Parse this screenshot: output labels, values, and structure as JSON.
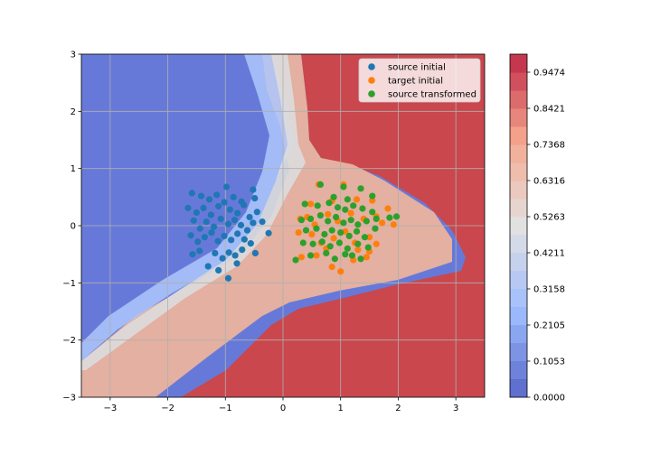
{
  "chart_data": {
    "type": "scatter",
    "title": "",
    "xlabel": "",
    "ylabel": "",
    "xlim": [
      -3.5,
      3.5
    ],
    "ylim": [
      -3,
      3
    ],
    "grid": true,
    "legend_position": "top-right",
    "x_ticks": [
      -3,
      -2,
      -1,
      0,
      1,
      2,
      3
    ],
    "x_tick_labels": [
      "−3",
      "−2",
      "−1",
      "0",
      "1",
      "2",
      "3"
    ],
    "y_ticks": [
      -3,
      -2,
      -1,
      0,
      1,
      2,
      3
    ],
    "y_tick_labels": [
      "−3",
      "−2",
      "−1",
      "0",
      "1",
      "2",
      "3"
    ],
    "background": {
      "type": "filled-contour",
      "colormap": "coolwarm",
      "low_color": "#6779d8",
      "mid_color": "#dddcdc",
      "high_color": "#c9474d"
    },
    "colorbar": {
      "min": 0,
      "max": 1,
      "ticks": [
        0,
        0.1053,
        0.2105,
        0.3158,
        0.4211,
        0.5263,
        0.6316,
        0.7368,
        0.8421,
        0.9474
      ],
      "tick_labels": [
        "0.0000",
        "0.1053",
        "0.2105",
        "0.3158",
        "0.4211",
        "0.5263",
        "0.6316",
        "0.7368",
        "0.8421",
        "0.9474"
      ]
    },
    "series": [
      {
        "name": "source initial",
        "color": "#1f77b4",
        "points": [
          [
            -1.58,
            0.57
          ],
          [
            -1.42,
            0.52
          ],
          [
            -1.28,
            0.46
          ],
          [
            -1.15,
            0.54
          ],
          [
            -0.98,
            0.68
          ],
          [
            -0.86,
            0.5
          ],
          [
            -0.72,
            0.42
          ],
          [
            -0.52,
            0.63
          ],
          [
            -0.49,
            0.48
          ],
          [
            -1.65,
            0.31
          ],
          [
            -1.5,
            0.23
          ],
          [
            -1.38,
            0.31
          ],
          [
            -1.25,
            0.19
          ],
          [
            -1.12,
            0.34
          ],
          [
            -1.02,
            0.41
          ],
          [
            -0.92,
            0.28
          ],
          [
            -0.79,
            0.22
          ],
          [
            -0.68,
            0.36
          ],
          [
            -0.58,
            0.15
          ],
          [
            -0.45,
            0.24
          ],
          [
            -1.55,
            0.09
          ],
          [
            -1.44,
            -0.05
          ],
          [
            -1.33,
            0.07
          ],
          [
            -1.2,
            -0.02
          ],
          [
            -1.08,
            0.12
          ],
          [
            -0.95,
            0.03
          ],
          [
            -0.84,
            0.1
          ],
          [
            -0.73,
            0.01
          ],
          [
            -0.62,
            -0.08
          ],
          [
            -0.52,
            0.05
          ],
          [
            -0.36,
            0.07
          ],
          [
            -1.6,
            -0.17
          ],
          [
            -1.48,
            -0.28
          ],
          [
            -1.36,
            -0.2
          ],
          [
            -1.24,
            -0.12
          ],
          [
            -1.13,
            -0.27
          ],
          [
            -1.02,
            -0.18
          ],
          [
            -0.9,
            -0.25
          ],
          [
            -0.79,
            -0.14
          ],
          [
            -0.67,
            -0.24
          ],
          [
            -0.56,
            -0.31
          ],
          [
            -0.25,
            -0.13
          ],
          [
            -1.57,
            -0.5
          ],
          [
            -1.45,
            -0.44
          ],
          [
            -1.3,
            -0.71
          ],
          [
            -1.18,
            -0.48
          ],
          [
            -1.05,
            -0.57
          ],
          [
            -0.94,
            -0.47
          ],
          [
            -0.83,
            -0.52
          ],
          [
            -0.71,
            -0.42
          ],
          [
            -0.48,
            -0.48
          ],
          [
            -1.12,
            -0.78
          ],
          [
            -0.95,
            -0.92
          ],
          [
            -0.8,
            -0.66
          ]
        ]
      },
      {
        "name": "target initial",
        "color": "#ff7f0e",
        "points": [
          [
            0.62,
            0.72
          ],
          [
            1.05,
            0.72
          ],
          [
            1.28,
            0.46
          ],
          [
            0.48,
            0.38
          ],
          [
            0.85,
            0.43
          ],
          [
            1.55,
            0.44
          ],
          [
            1.82,
            0.3
          ],
          [
            0.3,
            0.12
          ],
          [
            0.42,
            0.15
          ],
          [
            0.55,
            0.02
          ],
          [
            0.78,
            0.2
          ],
          [
            0.95,
            0.08
          ],
          [
            1.18,
            0.22
          ],
          [
            1.4,
            0.12
          ],
          [
            1.62,
            0.16
          ],
          [
            1.72,
            0.05
          ],
          [
            1.92,
            0.02
          ],
          [
            0.27,
            -0.12
          ],
          [
            0.5,
            -0.15
          ],
          [
            0.66,
            -0.3
          ],
          [
            0.88,
            -0.22
          ],
          [
            1.08,
            -0.1
          ],
          [
            1.25,
            -0.3
          ],
          [
            1.5,
            -0.2
          ],
          [
            1.62,
            -0.32
          ],
          [
            0.32,
            -0.55
          ],
          [
            0.58,
            -0.52
          ],
          [
            0.85,
            -0.72
          ],
          [
            1.0,
            -0.8
          ],
          [
            1.22,
            -0.6
          ],
          [
            1.45,
            -0.55
          ],
          [
            1.5,
            -0.45
          ],
          [
            1.3,
            -0.42
          ],
          [
            0.75,
            -0.4
          ]
        ]
      },
      {
        "name": "source transformed",
        "color": "#2ca02c",
        "points": [
          [
            0.65,
            0.72
          ],
          [
            1.05,
            0.68
          ],
          [
            1.35,
            0.65
          ],
          [
            0.88,
            0.5
          ],
          [
            1.12,
            0.46
          ],
          [
            1.55,
            0.52
          ],
          [
            0.38,
            0.38
          ],
          [
            0.6,
            0.35
          ],
          [
            0.8,
            0.4
          ],
          [
            0.95,
            0.32
          ],
          [
            1.08,
            0.28
          ],
          [
            1.22,
            0.35
          ],
          [
            1.38,
            0.3
          ],
          [
            1.55,
            0.24
          ],
          [
            0.32,
            0.1
          ],
          [
            0.48,
            0.12
          ],
          [
            0.65,
            0.18
          ],
          [
            0.78,
            0.08
          ],
          [
            0.92,
            0.15
          ],
          [
            1.05,
            0.05
          ],
          [
            1.18,
            0.1
          ],
          [
            1.3,
            0.02
          ],
          [
            1.45,
            0.08
          ],
          [
            1.62,
            0.12
          ],
          [
            1.85,
            0.14
          ],
          [
            1.97,
            0.16
          ],
          [
            0.4,
            -0.08
          ],
          [
            0.58,
            -0.05
          ],
          [
            0.72,
            -0.15
          ],
          [
            0.85,
            -0.08
          ],
          [
            1.0,
            -0.12
          ],
          [
            1.15,
            -0.18
          ],
          [
            1.28,
            -0.1
          ],
          [
            1.42,
            -0.2
          ],
          [
            1.6,
            -0.05
          ],
          [
            0.35,
            -0.3
          ],
          [
            0.52,
            -0.32
          ],
          [
            0.68,
            -0.28
          ],
          [
            0.82,
            -0.36
          ],
          [
            0.98,
            -0.3
          ],
          [
            1.12,
            -0.4
          ],
          [
            1.3,
            -0.32
          ],
          [
            1.48,
            -0.38
          ],
          [
            0.22,
            -0.6
          ],
          [
            0.48,
            -0.52
          ],
          [
            0.75,
            -0.48
          ],
          [
            0.9,
            -0.58
          ],
          [
            1.08,
            -0.5
          ],
          [
            1.2,
            -0.52
          ],
          [
            1.35,
            -0.58
          ]
        ]
      }
    ]
  }
}
